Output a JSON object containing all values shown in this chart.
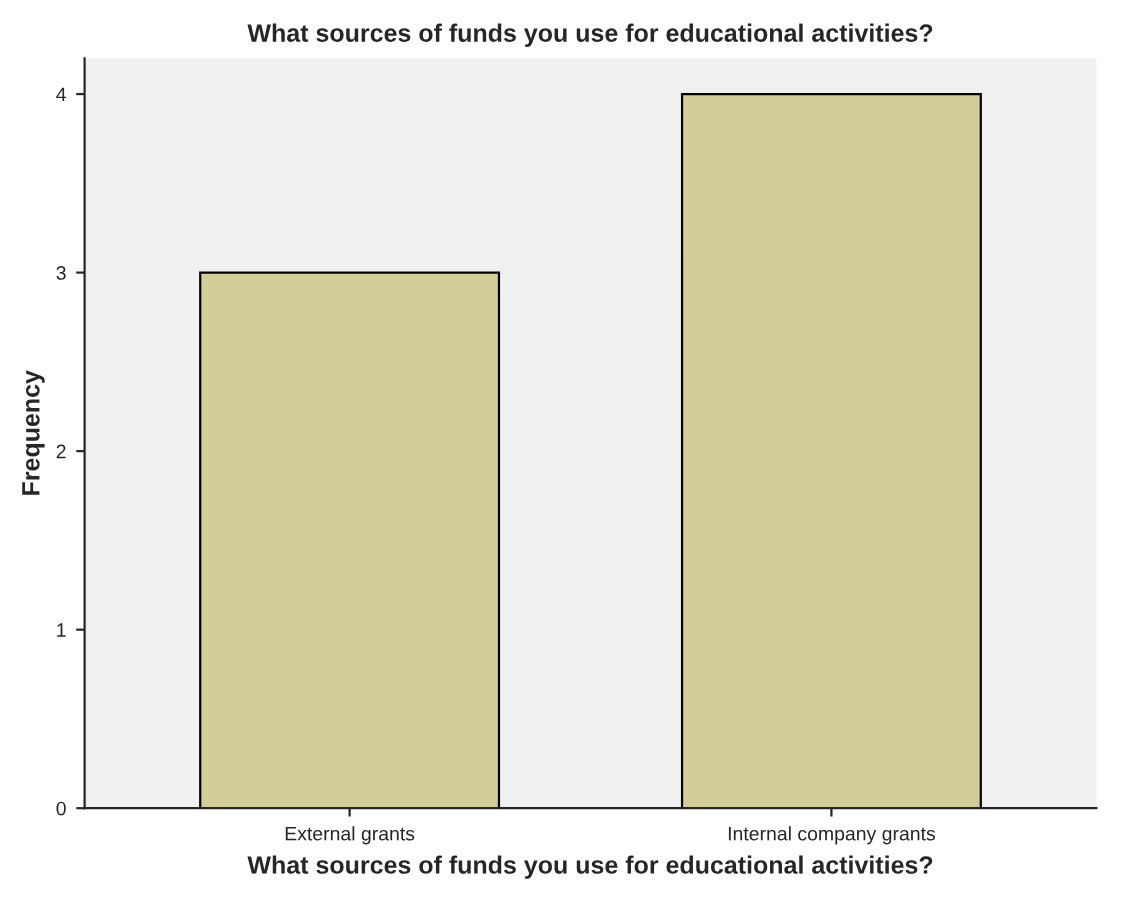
{
  "chart_data": {
    "type": "bar",
    "title": "What sources of funds you use for educational activities?",
    "xlabel": "What sources of funds you use for educational activities?",
    "ylabel": "Frequency",
    "categories": [
      "External grants",
      "Internal company grants"
    ],
    "values": [
      3,
      4
    ],
    "color": "#d3ce97",
    "ylim": [
      0,
      4.2
    ],
    "yticks": [
      0,
      1,
      2,
      3,
      4
    ],
    "grid": false
  }
}
